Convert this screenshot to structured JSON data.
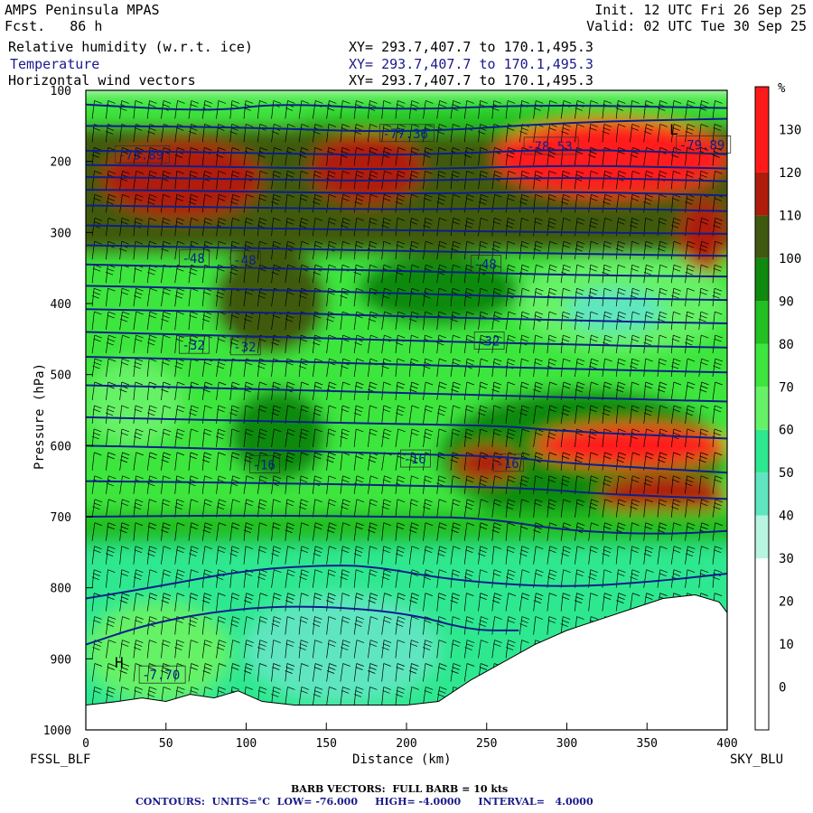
{
  "header": {
    "model": "AMPS Peninsula MPAS",
    "fcst_label": "Fcst.",
    "fcst_value": "86 h",
    "init": "Init. 12 UTC Fri 26 Sep 25",
    "valid": "Valid: 02 UTC Tue 30 Sep 25",
    "fields": [
      {
        "name": "Relative humidity (w.r.t. ice)",
        "xy": "XY= 293.7,407.7 to 170.1,495.3",
        "color": "#000000"
      },
      {
        "name": "Temperature",
        "xy": "XY= 293.7,407.7 to 170.1,495.3",
        "color": "#1a1a8c"
      },
      {
        "name": "Horizontal wind vectors",
        "xy": "XY= 293.7,407.7 to 170.1,495.3",
        "color": "#000000"
      }
    ]
  },
  "chart_data": {
    "type": "heatmap",
    "xlabel": "Distance (km)",
    "ylabel": "Pressure (hPa)",
    "xlim": [
      0,
      400
    ],
    "ylim": [
      1000,
      100
    ],
    "x_ticks": [
      0,
      50,
      100,
      150,
      200,
      250,
      300,
      350,
      400
    ],
    "y_ticks": [
      100,
      200,
      300,
      400,
      500,
      600,
      700,
      800,
      900,
      1000
    ],
    "left_endpoint": "FSSL_BLF",
    "right_endpoint": "SKY_BLU",
    "colorbar": {
      "unit": "%",
      "ticks": [
        0,
        10,
        20,
        30,
        40,
        50,
        60,
        70,
        80,
        90,
        100,
        110,
        120,
        130
      ],
      "bands": [
        {
          "from": -10,
          "to": 30,
          "color": "#ffffff"
        },
        {
          "from": 30,
          "to": 40,
          "color": "#b8f5e0"
        },
        {
          "from": 40,
          "to": 50,
          "color": "#5fe6c0"
        },
        {
          "from": 50,
          "to": 60,
          "color": "#2ee890"
        },
        {
          "from": 60,
          "to": 70,
          "color": "#66f266"
        },
        {
          "from": 70,
          "to": 80,
          "color": "#3de63d"
        },
        {
          "from": 80,
          "to": 90,
          "color": "#22c022"
        },
        {
          "from": 90,
          "to": 100,
          "color": "#0f8a0f"
        },
        {
          "from": 100,
          "to": 110,
          "color": "#3f5a10"
        },
        {
          "from": 110,
          "to": 120,
          "color": "#b01c0c"
        },
        {
          "from": 120,
          "to": 140,
          "color": "#ff1a1a"
        }
      ]
    },
    "rh_regions": [
      {
        "x": [
          0,
          400
        ],
        "p": [
          100,
          800
        ],
        "value": 72
      },
      {
        "x": [
          0,
          400
        ],
        "p": [
          700,
          1000
        ],
        "value": 58
      },
      {
        "x": [
          0,
          400
        ],
        "p": [
          150,
          330
        ],
        "value": 104
      },
      {
        "x": [
          130,
          400
        ],
        "p": [
          125,
          160
        ],
        "value": 85
      },
      {
        "x": [
          30,
          90
        ],
        "p": [
          190,
          260
        ],
        "value": 125
      },
      {
        "x": [
          10,
          110
        ],
        "p": [
          170,
          280
        ],
        "value": 113
      },
      {
        "x": [
          140,
          210
        ],
        "p": [
          160,
          260
        ],
        "value": 118
      },
      {
        "x": [
          255,
          400
        ],
        "p": [
          140,
          250
        ],
        "value": 122
      },
      {
        "x": [
          370,
          400
        ],
        "p": [
          250,
          360
        ],
        "value": 118
      },
      {
        "x": [
          80,
          150
        ],
        "p": [
          320,
          470
        ],
        "value": 100
      },
      {
        "x": [
          170,
          270
        ],
        "p": [
          330,
          430
        ],
        "value": 98
      },
      {
        "x": [
          270,
          400
        ],
        "p": [
          330,
          470
        ],
        "value": 62
      },
      {
        "x": [
          300,
          360
        ],
        "p": [
          380,
          440
        ],
        "value": 40
      },
      {
        "x": [
          0,
          60
        ],
        "p": [
          480,
          600
        ],
        "value": 66
      },
      {
        "x": [
          90,
          150
        ],
        "p": [
          520,
          650
        ],
        "value": 95
      },
      {
        "x": [
          220,
          400
        ],
        "p": [
          520,
          710
        ],
        "value": 98
      },
      {
        "x": [
          280,
          400
        ],
        "p": [
          570,
          630
        ],
        "value": 120
      },
      {
        "x": [
          320,
          400
        ],
        "p": [
          640,
          700
        ],
        "value": 118
      },
      {
        "x": [
          230,
          270
        ],
        "p": [
          600,
          650
        ],
        "value": 119
      },
      {
        "x": [
          0,
          400
        ],
        "p": [
          690,
          740
        ],
        "value": 82
      },
      {
        "x": [
          100,
          220
        ],
        "p": [
          810,
          960
        ],
        "value": 45
      },
      {
        "x": [
          0,
          90
        ],
        "p": [
          820,
          960
        ],
        "value": 60
      }
    ],
    "terrain": [
      [
        0,
        965
      ],
      [
        20,
        960
      ],
      [
        35,
        955
      ],
      [
        50,
        960
      ],
      [
        65,
        950
      ],
      [
        80,
        955
      ],
      [
        95,
        945
      ],
      [
        110,
        960
      ],
      [
        130,
        965
      ],
      [
        160,
        965
      ],
      [
        200,
        965
      ],
      [
        220,
        960
      ],
      [
        240,
        930
      ],
      [
        260,
        905
      ],
      [
        280,
        880
      ],
      [
        300,
        860
      ],
      [
        320,
        845
      ],
      [
        340,
        830
      ],
      [
        360,
        815
      ],
      [
        380,
        810
      ],
      [
        395,
        820
      ],
      [
        400,
        835
      ],
      [
        400,
        1000
      ],
      [
        0,
        1000
      ]
    ],
    "isotherms": [
      {
        "value": -72,
        "points": [
          [
            0,
            150
          ],
          [
            100,
            152
          ],
          [
            200,
            160
          ],
          [
            300,
            145
          ],
          [
            400,
            140
          ]
        ]
      },
      {
        "value": -76,
        "points": [
          [
            0,
            120
          ],
          [
            80,
            130
          ],
          [
            120,
            118
          ],
          [
            200,
            128
          ],
          [
            280,
            120
          ],
          [
            400,
            125
          ]
        ]
      },
      {
        "value": -68,
        "points": [
          [
            0,
            185
          ],
          [
            100,
            188
          ],
          [
            200,
            192
          ],
          [
            300,
            182
          ],
          [
            400,
            190
          ]
        ]
      },
      {
        "value": -64,
        "points": [
          [
            0,
            205
          ],
          [
            100,
            208
          ],
          [
            200,
            212
          ],
          [
            300,
            205
          ],
          [
            400,
            210
          ]
        ]
      },
      {
        "value": -60,
        "points": [
          [
            0,
            222
          ],
          [
            100,
            225
          ],
          [
            200,
            228
          ],
          [
            300,
            222
          ],
          [
            400,
            228
          ]
        ]
      },
      {
        "value": -56,
        "points": [
          [
            0,
            240
          ],
          [
            100,
            242
          ],
          [
            200,
            246
          ],
          [
            300,
            242
          ],
          [
            400,
            248
          ]
        ]
      },
      {
        "value": -52,
        "points": [
          [
            0,
            262
          ],
          [
            100,
            265
          ],
          [
            200,
            268
          ],
          [
            300,
            265
          ],
          [
            400,
            270
          ]
        ]
      },
      {
        "value": -48,
        "points": [
          [
            0,
            290
          ],
          [
            100,
            294
          ],
          [
            200,
            297
          ],
          [
            300,
            300
          ],
          [
            400,
            302
          ]
        ]
      },
      {
        "value": -44,
        "points": [
          [
            0,
            318
          ],
          [
            100,
            322
          ],
          [
            200,
            326
          ],
          [
            300,
            330
          ],
          [
            400,
            333
          ]
        ]
      },
      {
        "value": -40,
        "points": [
          [
            0,
            345
          ],
          [
            100,
            350
          ],
          [
            200,
            354
          ],
          [
            300,
            360
          ],
          [
            400,
            362
          ]
        ]
      },
      {
        "value": -36,
        "points": [
          [
            0,
            375
          ],
          [
            100,
            380
          ],
          [
            200,
            386
          ],
          [
            300,
            392
          ],
          [
            400,
            395
          ]
        ]
      },
      {
        "value": -32,
        "points": [
          [
            0,
            408
          ],
          [
            100,
            412
          ],
          [
            200,
            418
          ],
          [
            300,
            424
          ],
          [
            400,
            428
          ]
        ]
      },
      {
        "value": -28,
        "points": [
          [
            0,
            440
          ],
          [
            100,
            446
          ],
          [
            200,
            452
          ],
          [
            300,
            458
          ],
          [
            400,
            462
          ]
        ]
      },
      {
        "value": -24,
        "points": [
          [
            0,
            475
          ],
          [
            100,
            480
          ],
          [
            200,
            486
          ],
          [
            300,
            492
          ],
          [
            400,
            497
          ]
        ]
      },
      {
        "value": -20,
        "points": [
          [
            0,
            515
          ],
          [
            100,
            520
          ],
          [
            200,
            526
          ],
          [
            300,
            532
          ],
          [
            400,
            538
          ]
        ]
      },
      {
        "value": -16,
        "points": [
          [
            0,
            560
          ],
          [
            100,
            565
          ],
          [
            200,
            570
          ],
          [
            260,
            572
          ],
          [
            300,
            580
          ],
          [
            400,
            590
          ]
        ]
      },
      {
        "value": -12,
        "points": [
          [
            0,
            600
          ],
          [
            100,
            605
          ],
          [
            200,
            612
          ],
          [
            260,
            615
          ],
          [
            300,
            625
          ],
          [
            400,
            638
          ]
        ]
      },
      {
        "value": -8,
        "points": [
          [
            0,
            650
          ],
          [
            100,
            652
          ],
          [
            200,
            656
          ],
          [
            280,
            660
          ],
          [
            320,
            668
          ],
          [
            400,
            675
          ]
        ]
      },
      {
        "value": -4,
        "points": [
          [
            0,
            700
          ],
          [
            100,
            698
          ],
          [
            200,
            700
          ],
          [
            250,
            702
          ],
          [
            300,
            720
          ],
          [
            360,
            725
          ],
          [
            400,
            720
          ]
        ]
      },
      {
        "value": -8,
        "points": [
          [
            0,
            815
          ],
          [
            40,
            800
          ],
          [
            100,
            775
          ],
          [
            150,
            768
          ],
          [
            180,
            770
          ],
          [
            230,
            790
          ],
          [
            300,
            800
          ],
          [
            360,
            790
          ],
          [
            400,
            780
          ]
        ]
      },
      {
        "value": -4,
        "points": [
          [
            0,
            880
          ],
          [
            40,
            850
          ],
          [
            90,
            830
          ],
          [
            140,
            825
          ],
          [
            200,
            835
          ],
          [
            240,
            860
          ],
          [
            270,
            860
          ]
        ]
      }
    ],
    "isotherm_labels": [
      {
        "x": 20,
        "p": 192,
        "text": "-75.89"
      },
      {
        "x": 185,
        "p": 162,
        "text": "-77.36"
      },
      {
        "x": 275,
        "p": 180,
        "text": "-78.53"
      },
      {
        "x": 370,
        "p": 178,
        "text": "-79.89"
      },
      {
        "x": 60,
        "p": 338,
        "text": "-48"
      },
      {
        "x": 92,
        "p": 340,
        "text": "-48"
      },
      {
        "x": 242,
        "p": 346,
        "text": "-48"
      },
      {
        "x": 60,
        "p": 460,
        "text": "-32"
      },
      {
        "x": 92,
        "p": 462,
        "text": "-32"
      },
      {
        "x": 244,
        "p": 454,
        "text": "-32"
      },
      {
        "x": 104,
        "p": 628,
        "text": "-16"
      },
      {
        "x": 198,
        "p": 620,
        "text": "-16"
      },
      {
        "x": 256,
        "p": 626,
        "text": "-16"
      },
      {
        "x": 35,
        "p": 924,
        "text": "-7.70"
      }
    ],
    "markers": [
      {
        "x": 364,
        "p": 162,
        "text": "L"
      },
      {
        "x": 18,
        "p": 912,
        "text": "H"
      }
    ]
  },
  "footer": {
    "barb_note": "BARB VECTORS:  FULL BARB = 10 kts",
    "contours": "CONTOURS:  UNITS=°C  LOW= -76.000     HIGH= -4.0000     INTERVAL=   4.0000"
  },
  "colors": {
    "isotherm": "#0c1f8c",
    "barb": "#000000"
  }
}
